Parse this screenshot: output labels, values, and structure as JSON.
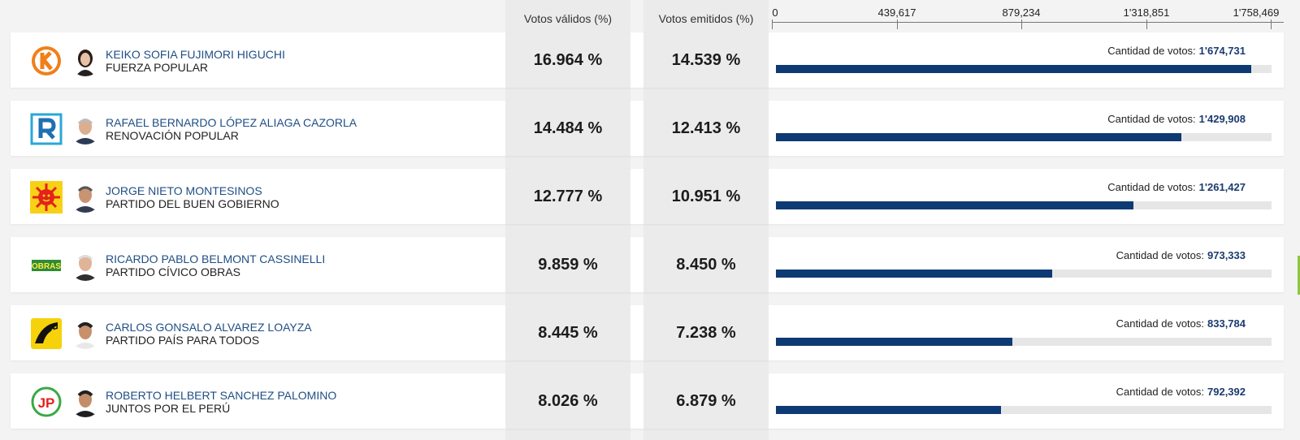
{
  "header": {
    "valid_votes_label": "Votos válidos (%)",
    "cast_votes_label": "Votos emitidos (%)"
  },
  "axis": {
    "ticks": [
      "0",
      "439,617",
      "879,234",
      "1'318,851",
      "1'758,469"
    ],
    "max": 1758469
  },
  "votes_prefix": "Cantidad de votos:",
  "colors": {
    "bar": "#0e3a73",
    "candidate_name": "#1f4e84",
    "track": "#e6e6e6"
  },
  "rows": [
    {
      "candidate": "KEIKO SOFIA FUJIMORI HIGUCHI",
      "party": "FUERZA POPULAR",
      "valid_pct": "16.964 %",
      "cast_pct": "14.539 %",
      "votes": "1'674,731",
      "votes_num": 1674731,
      "logo_icon": "fuerza-popular-k-logo-icon",
      "photo_icon": "candidate-photo-icon"
    },
    {
      "candidate": "RAFAEL BERNARDO LÓPEZ ALIAGA CAZORLA",
      "party": "RENOVACIÓN POPULAR",
      "valid_pct": "14.484 %",
      "cast_pct": "12.413 %",
      "votes": "1'429,908",
      "votes_num": 1429908,
      "logo_icon": "renovacion-popular-r-logo-icon",
      "photo_icon": "candidate-photo-icon"
    },
    {
      "candidate": "JORGE NIETO MONTESINOS",
      "party": "PARTIDO DEL BUEN GOBIERNO",
      "valid_pct": "12.777 %",
      "cast_pct": "10.951 %",
      "votes": "1'261,427",
      "votes_num": 1261427,
      "logo_icon": "sun-logo-icon",
      "photo_icon": "candidate-photo-icon"
    },
    {
      "candidate": "RICARDO PABLO BELMONT CASSINELLI",
      "party": "PARTIDO CÍVICO OBRAS",
      "valid_pct": "9.859 %",
      "cast_pct": "8.450 %",
      "votes": "973,333",
      "votes_num": 973333,
      "logo_icon": "obras-logo-icon",
      "logo_text": "OBRAS",
      "photo_icon": "candidate-photo-icon"
    },
    {
      "candidate": "CARLOS GONSALO ALVAREZ LOAYZA",
      "party": "PARTIDO PAÍS PARA TODOS",
      "valid_pct": "8.445 %",
      "cast_pct": "7.238 %",
      "votes": "833,784",
      "votes_num": 833784,
      "logo_icon": "pais-para-todos-road-logo-icon",
      "photo_icon": "candidate-photo-icon"
    },
    {
      "candidate": "ROBERTO HELBERT SANCHEZ PALOMINO",
      "party": "JUNTOS POR EL PERÚ",
      "valid_pct": "8.026 %",
      "cast_pct": "6.879 %",
      "votes": "792,392",
      "votes_num": 792392,
      "logo_icon": "juntos-por-el-peru-jp-logo-icon",
      "logo_text": "JP",
      "photo_icon": "candidate-photo-icon"
    }
  ]
}
